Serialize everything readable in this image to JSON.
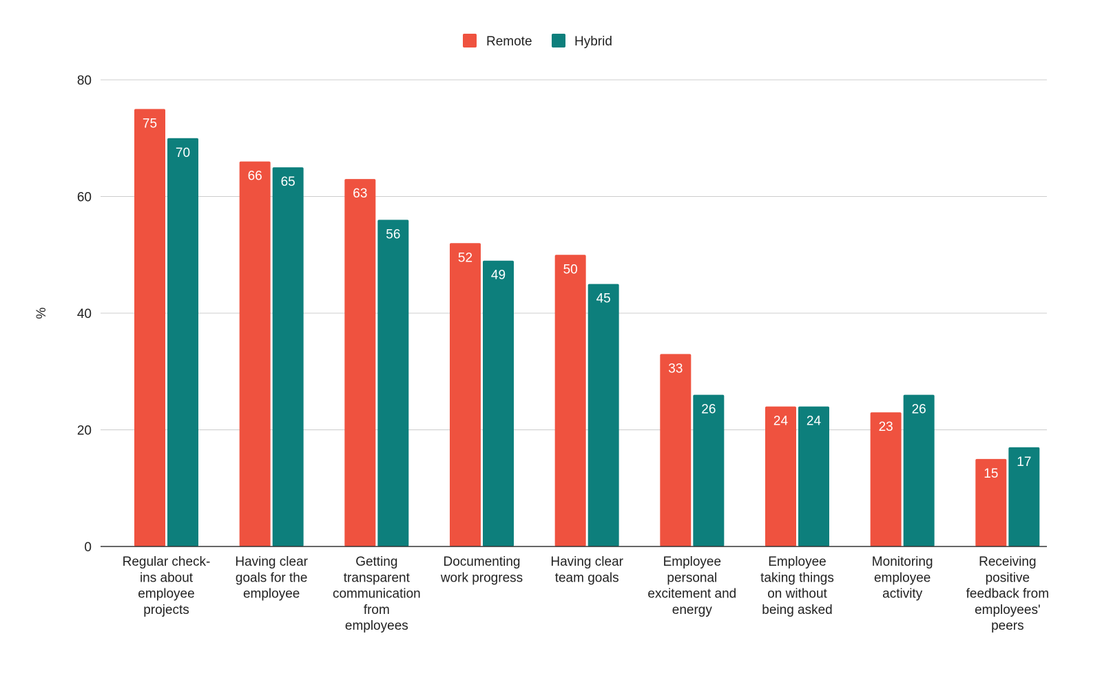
{
  "chart_data": {
    "type": "bar",
    "title": "",
    "xlabel": "",
    "ylabel": "%",
    "ylim": [
      0,
      80
    ],
    "yticks": [
      0,
      20,
      40,
      60,
      80
    ],
    "grid": true,
    "legend_position": "top-center",
    "categories": [
      "Regular check-ins about employee projects",
      "Having clear goals for the employee",
      "Getting transparent communication from employees",
      "Documenting work progress",
      "Having clear team goals",
      "Employee personal excitement and energy",
      "Employee taking things on without being asked",
      "Monitoring employee activity",
      "Receiving positive feedback from employees' peers"
    ],
    "category_lines": [
      [
        "Regular check-",
        "ins about",
        "employee",
        "projects"
      ],
      [
        "Having clear",
        "goals for the",
        "employee"
      ],
      [
        "Getting",
        "transparent",
        "communication",
        "from",
        "employees"
      ],
      [
        "Documenting",
        "work progress"
      ],
      [
        "Having clear",
        "team goals"
      ],
      [
        "Employee",
        "personal",
        "excitement and",
        "energy"
      ],
      [
        "Employee",
        "taking things",
        "on without",
        "being asked"
      ],
      [
        "Monitoring",
        "employee",
        "activity"
      ],
      [
        "Receiving",
        "positive",
        "feedback from",
        "employees'",
        "peers"
      ]
    ],
    "series": [
      {
        "name": "Remote",
        "color": "#ef523f",
        "values": [
          75,
          66,
          63,
          52,
          50,
          33,
          24,
          23,
          15
        ]
      },
      {
        "name": "Hybrid",
        "color": "#0d7f7c",
        "values": [
          70,
          65,
          56,
          49,
          45,
          26,
          24,
          26,
          17
        ]
      }
    ]
  }
}
